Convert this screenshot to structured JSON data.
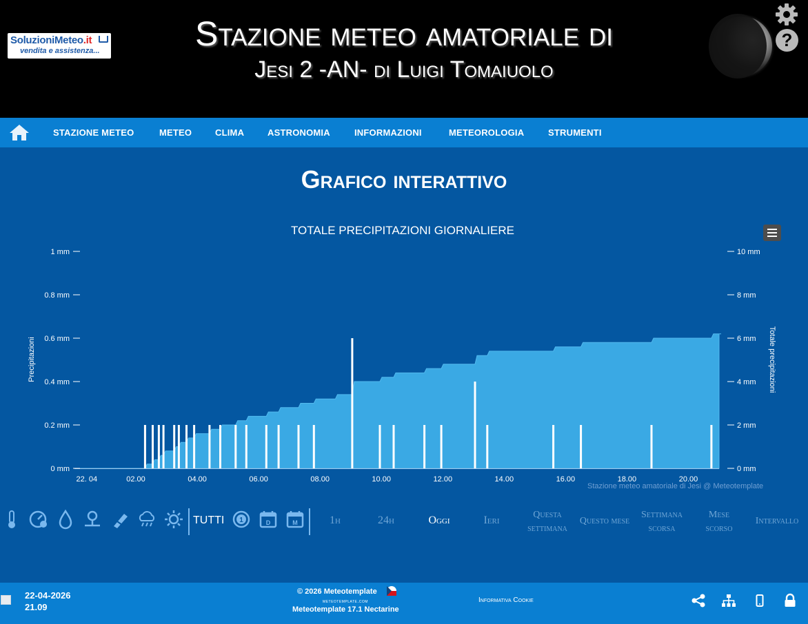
{
  "header": {
    "logo_text_main": "SoluzioniMeteo",
    "logo_text_ext": ".it",
    "logo_text_sub": "vendita e assistenza...",
    "title_line1": "Stazione meteo amatoriale di",
    "title_line2": "Jesi 2 -AN- di Luigi Tomaiuolo",
    "help_glyph": "?",
    "icons": [
      "gear-icon",
      "help-icon",
      "moon-phase"
    ]
  },
  "nav": {
    "items": [
      "STAZIONE METEO",
      "METEO",
      "CLIMA",
      "ASTRONOMIA",
      "INFORMAZIONI",
      "METEOROLOGIA",
      "STRUMENTI"
    ]
  },
  "page": {
    "title": "Grafico interattivo"
  },
  "chart_data": {
    "type": "bar",
    "title": "TOTALE PRECIPITAZIONI GIORNALIERE",
    "x_ticks": [
      "22. 04",
      "02.00",
      "04.00",
      "06.00",
      "08.00",
      "10.00",
      "12.00",
      "14.00",
      "16.00",
      "18.00",
      "20.00"
    ],
    "x_range_hours": [
      0,
      21.0
    ],
    "y_left": {
      "label": "Precipitazioni",
      "ticks": [
        "0 mm",
        "0.2 mm",
        "0.4 mm",
        "0.6 mm",
        "0.8 mm",
        "1 mm"
      ],
      "range": [
        0,
        1
      ]
    },
    "y_right": {
      "label": "Totale precipitazioni",
      "ticks": [
        "0 mm",
        "2 mm",
        "4 mm",
        "6 mm",
        "8 mm",
        "10 mm"
      ],
      "range": [
        0,
        10
      ]
    },
    "series": [
      {
        "name": "Precipitazioni",
        "kind": "bar",
        "axis": "left",
        "color": "#ffffff",
        "points": [
          [
            2.3,
            0.2
          ],
          [
            2.55,
            0.2
          ],
          [
            2.75,
            0.2
          ],
          [
            2.9,
            0.2
          ],
          [
            3.25,
            0.2
          ],
          [
            3.4,
            0.2
          ],
          [
            3.65,
            0.2
          ],
          [
            3.9,
            0.2
          ],
          [
            4.4,
            0.2
          ],
          [
            4.75,
            0.2
          ],
          [
            5.25,
            0.2
          ],
          [
            5.6,
            0.2
          ],
          [
            6.25,
            0.2
          ],
          [
            6.65,
            0.2
          ],
          [
            7.3,
            0.2
          ],
          [
            7.8,
            0.2
          ],
          [
            9.05,
            0.6
          ],
          [
            9.95,
            0.2
          ],
          [
            10.4,
            0.2
          ],
          [
            11.4,
            0.2
          ],
          [
            11.95,
            0.2
          ],
          [
            13.05,
            0.4
          ],
          [
            13.45,
            0.2
          ],
          [
            15.6,
            0.2
          ],
          [
            16.5,
            0.2
          ],
          [
            18.8,
            0.2
          ],
          [
            20.75,
            0.2
          ]
        ]
      },
      {
        "name": "Totale precipitazioni",
        "kind": "area",
        "axis": "right",
        "color": "#3aa9e4",
        "points": [
          [
            0,
            0
          ],
          [
            2.3,
            0
          ],
          [
            2.3,
            0.2
          ],
          [
            2.55,
            0.4
          ],
          [
            2.75,
            0.6
          ],
          [
            2.9,
            0.8
          ],
          [
            3.25,
            1.0
          ],
          [
            3.4,
            1.2
          ],
          [
            3.65,
            1.4
          ],
          [
            3.9,
            1.6
          ],
          [
            4.4,
            1.8
          ],
          [
            4.75,
            2.0
          ],
          [
            5.25,
            2.2
          ],
          [
            5.6,
            2.4
          ],
          [
            6.25,
            2.6
          ],
          [
            6.65,
            2.8
          ],
          [
            7.3,
            3.0
          ],
          [
            7.8,
            3.2
          ],
          [
            8.5,
            3.4
          ],
          [
            9.05,
            4.0
          ],
          [
            9.95,
            4.2
          ],
          [
            10.4,
            4.4
          ],
          [
            11.4,
            4.6
          ],
          [
            11.95,
            4.8
          ],
          [
            13.05,
            5.2
          ],
          [
            13.45,
            5.4
          ],
          [
            15.6,
            5.6
          ],
          [
            16.5,
            5.8
          ],
          [
            18.8,
            6.0
          ],
          [
            20.75,
            6.2
          ],
          [
            21.0,
            6.2
          ]
        ]
      }
    ],
    "grid": false,
    "credits": "Stazione meteo amatoriale di Jesi @ Meteotemplate"
  },
  "controls": {
    "type_icons": [
      "thermometer-icon",
      "pressure-gauge-icon",
      "humidity-drop-icon",
      "wind-icon",
      "wind-sock-icon",
      "rain-cloud-icon",
      "sun-icon"
    ],
    "all_label": "TUTTI",
    "period_icons": [
      "clock-1-icon",
      "calendar-day-icon",
      "calendar-month-icon"
    ],
    "ranges": [
      "1h",
      "24h",
      "Oggi",
      "Ieri",
      "Questa",
      "settimana",
      "Questo mese",
      "Settimana",
      "scorsa",
      "Mese",
      "scorso",
      "Intervallo"
    ],
    "selected": "Oggi"
  },
  "footer": {
    "date": "22-04-2026",
    "time": "21.09",
    "copyright": "© 2026 Meteotemplate",
    "site": "meteotemplate.com",
    "version": "Meteotemplate 17.1 Nectarine",
    "cookie": "Informativa Cookie",
    "icons": [
      "share-icon",
      "sitemap-icon",
      "mobile-icon",
      "lock-icon"
    ]
  }
}
